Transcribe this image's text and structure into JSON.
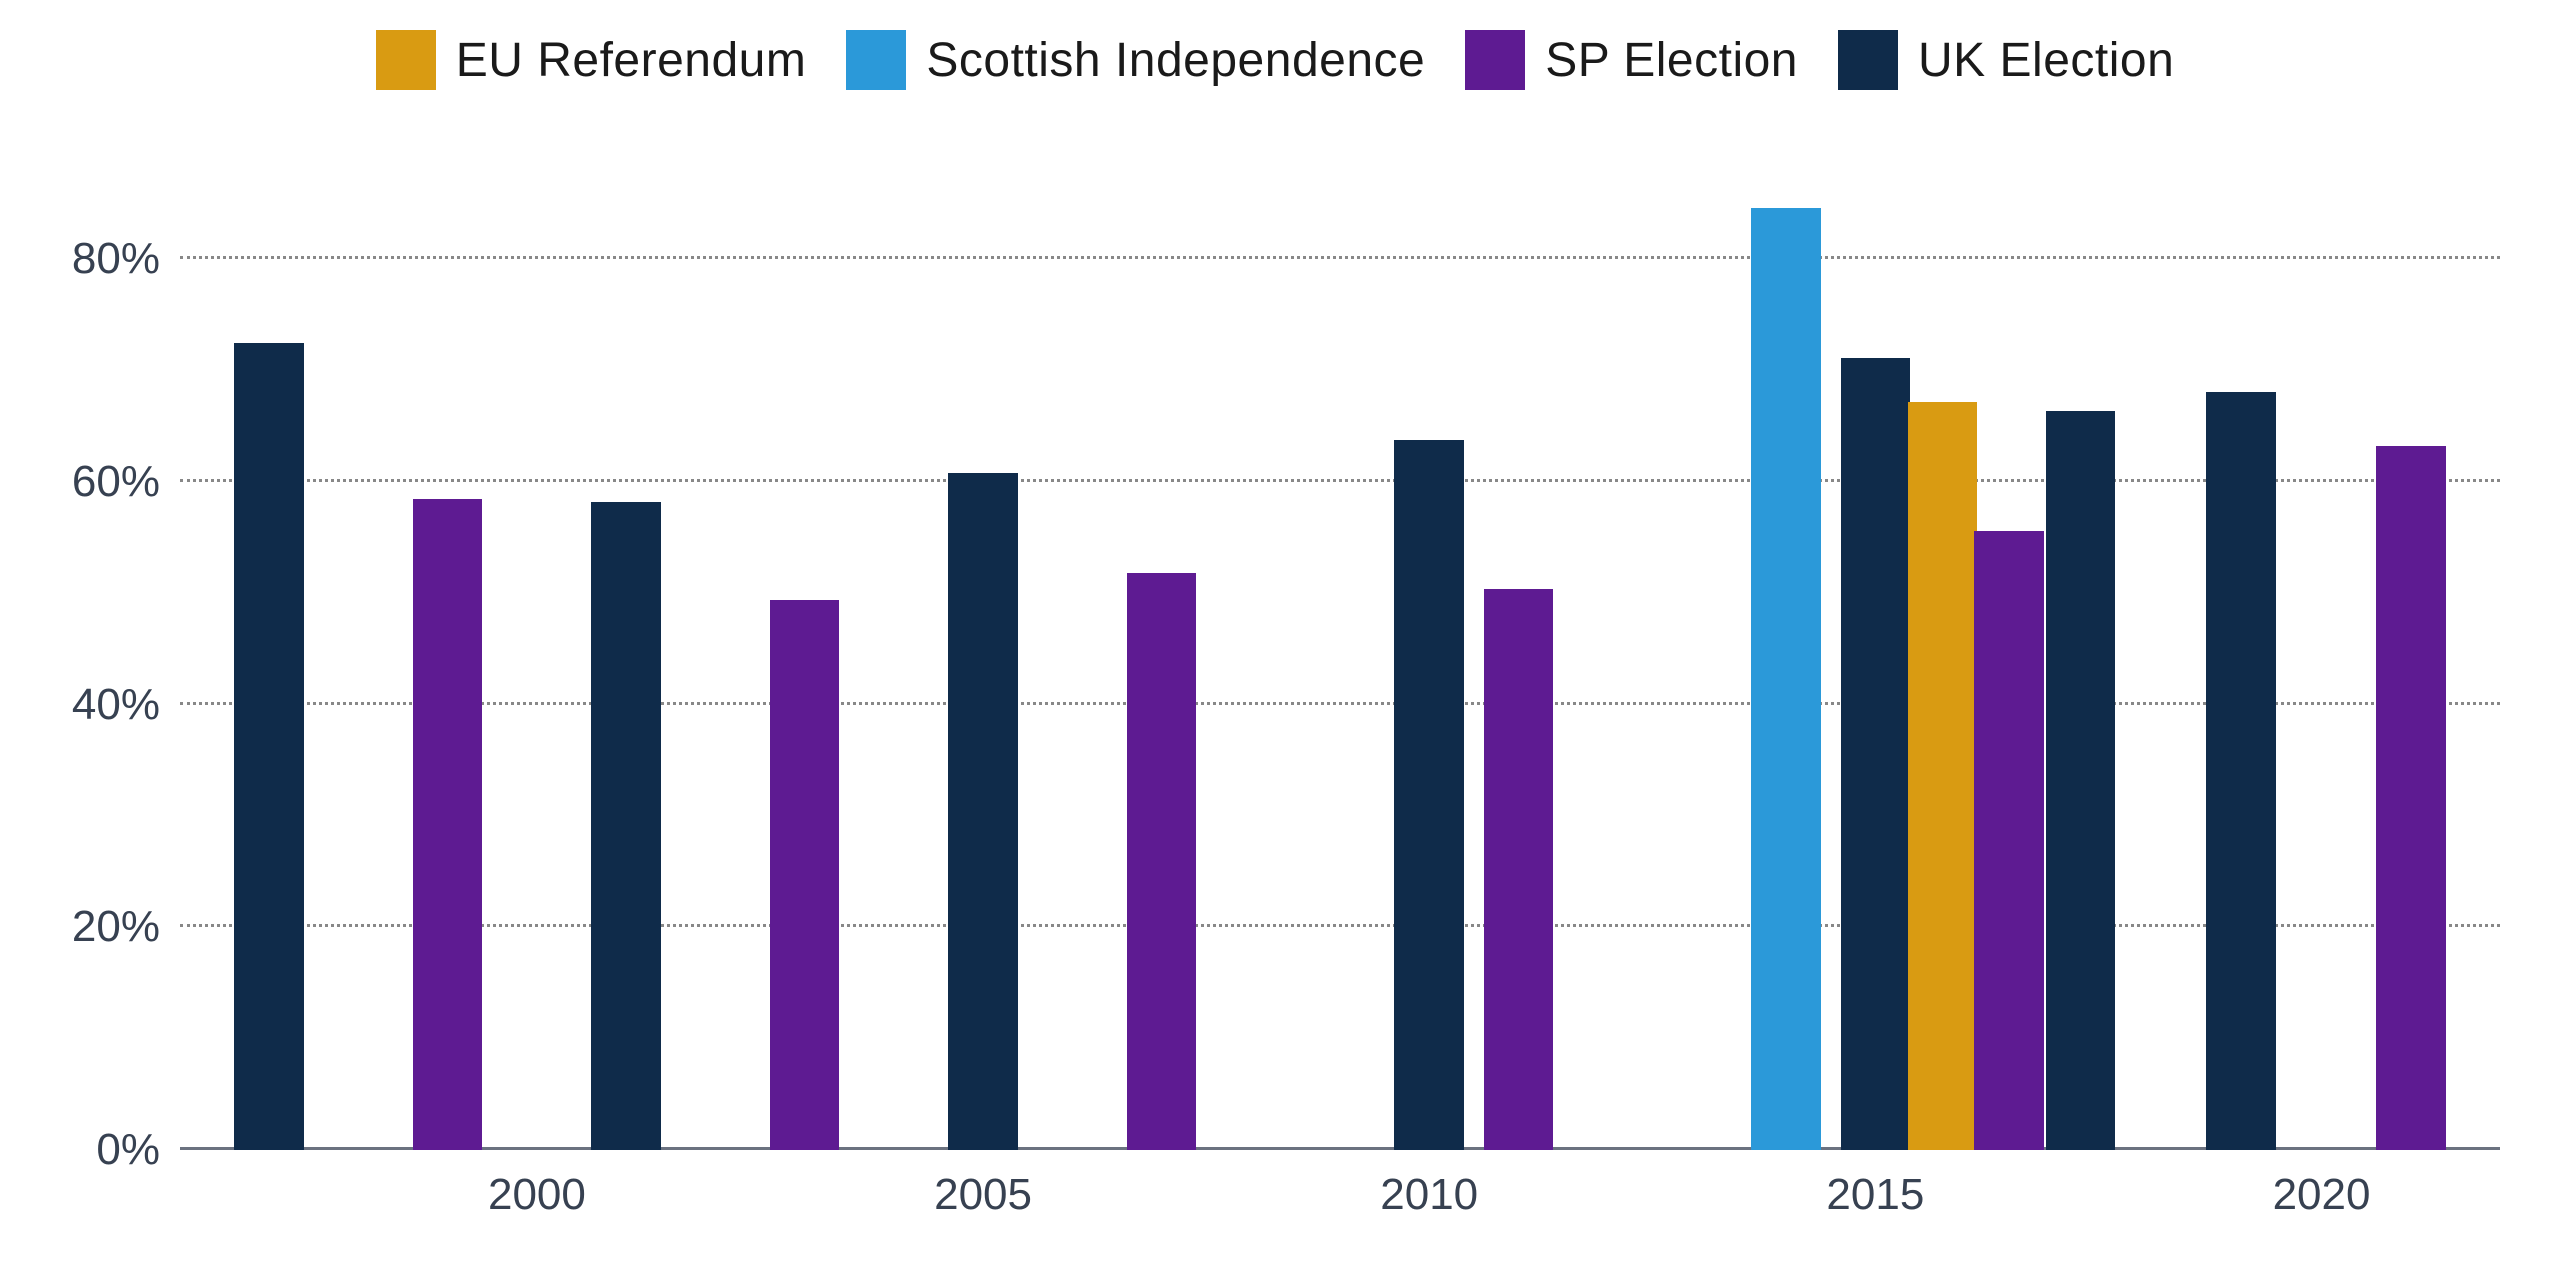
{
  "chart": {
    "type": "bar",
    "background_color": "#ffffff",
    "grid_color": "#888888",
    "axis_color": "#6b7280",
    "text_color": "#374151",
    "legend_fontsize": 48,
    "tick_fontsize": 44,
    "series": [
      {
        "key": "eu_referendum",
        "label": "EU Referendum",
        "color": "#d99b12"
      },
      {
        "key": "scottish_independence",
        "label": "Scottish Independence",
        "color": "#2b99d9"
      },
      {
        "key": "sp_election",
        "label": "SP Election",
        "color": "#5e1b92"
      },
      {
        "key": "uk_election",
        "label": "UK Election",
        "color": "#0f2b4a"
      }
    ],
    "x_domain": {
      "min": 1996,
      "max": 2022
    },
    "y_domain": {
      "min": 0,
      "max": 88
    },
    "y_ticks": [
      {
        "value": 0,
        "label": "0%"
      },
      {
        "value": 20,
        "label": "20%"
      },
      {
        "value": 40,
        "label": "40%"
      },
      {
        "value": 60,
        "label": "60%"
      },
      {
        "value": 80,
        "label": "80%"
      }
    ],
    "x_ticks": [
      {
        "value": 2000,
        "label": "2000"
      },
      {
        "value": 2005,
        "label": "2005"
      },
      {
        "value": 2010,
        "label": "2010"
      },
      {
        "value": 2015,
        "label": "2015"
      },
      {
        "value": 2020,
        "label": "2020"
      }
    ],
    "bar_width_years": 0.78,
    "data_points": [
      {
        "year": 1997.0,
        "series": "uk_election",
        "value": 72.5
      },
      {
        "year": 1999.0,
        "series": "sp_election",
        "value": 58.5
      },
      {
        "year": 2001.0,
        "series": "uk_election",
        "value": 58.2
      },
      {
        "year": 2003.0,
        "series": "sp_election",
        "value": 49.4
      },
      {
        "year": 2005.0,
        "series": "uk_election",
        "value": 60.8
      },
      {
        "year": 2007.0,
        "series": "sp_election",
        "value": 51.8
      },
      {
        "year": 2010.0,
        "series": "uk_election",
        "value": 63.8
      },
      {
        "year": 2011.0,
        "series": "sp_election",
        "value": 50.4
      },
      {
        "year": 2014.0,
        "series": "scottish_independence",
        "value": 84.6
      },
      {
        "year": 2015.0,
        "series": "uk_election",
        "value": 71.1
      },
      {
        "year": 2015.75,
        "series": "eu_referendum",
        "value": 67.2
      },
      {
        "year": 2016.5,
        "series": "sp_election",
        "value": 55.6
      },
      {
        "year": 2017.3,
        "series": "uk_election",
        "value": 66.4
      },
      {
        "year": 2019.1,
        "series": "uk_election",
        "value": 68.1
      },
      {
        "year": 2021.0,
        "series": "sp_election",
        "value": 63.2
      }
    ]
  }
}
